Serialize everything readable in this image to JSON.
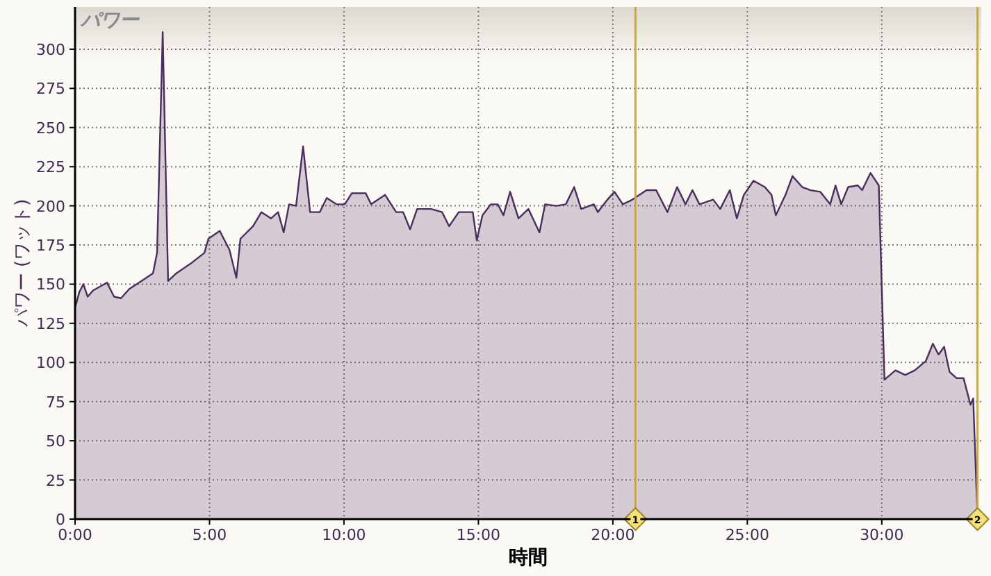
{
  "chart_data": {
    "type": "area",
    "title": "パワー",
    "xlabel": "時間",
    "ylabel": "パワー (ワット)",
    "xlim": [
      0,
      33.7
    ],
    "ylim": [
      0,
      327
    ],
    "xticks": [
      {
        "value": 0,
        "label": "0:00"
      },
      {
        "value": 5,
        "label": "5:00"
      },
      {
        "value": 10,
        "label": "10:00"
      },
      {
        "value": 15,
        "label": "15:00"
      },
      {
        "value": 20,
        "label": "20:00"
      },
      {
        "value": 25,
        "label": "25:00"
      },
      {
        "value": 30,
        "label": "30:00"
      }
    ],
    "yticks": [
      0,
      25,
      50,
      75,
      100,
      125,
      150,
      175,
      200,
      225,
      250,
      275,
      300
    ],
    "grid": true,
    "ref_lines": [
      {
        "axis": "x",
        "value": 20.84,
        "color": "#d4aa20"
      },
      {
        "axis": "x",
        "value": 33.56,
        "color": "#d4aa20"
      }
    ],
    "annotations": [
      {
        "text": "1",
        "x": 20.84,
        "y": 0
      },
      {
        "text": "2",
        "x": 33.56,
        "y": 0
      }
    ],
    "series": [
      {
        "color": "#4b2c5e",
        "x": [
          0,
          0.16,
          0.31,
          0.47,
          0.67,
          1.19,
          1.45,
          1.71,
          2.02,
          2.38,
          2.9,
          3.05,
          3.26,
          3.46,
          3.77,
          4.29,
          4.81,
          4.96,
          5.38,
          5.74,
          6.0,
          6.15,
          6.62,
          6.93,
          7.29,
          7.55,
          7.76,
          7.96,
          8.22,
          8.48,
          8.74,
          9.1,
          9.36,
          9.72,
          10.03,
          10.29,
          10.81,
          11.01,
          11.53,
          11.94,
          12.2,
          12.46,
          12.72,
          13.24,
          13.65,
          13.91,
          14.27,
          14.79,
          14.94,
          15.15,
          15.46,
          15.72,
          15.93,
          16.18,
          16.49,
          16.86,
          17.27,
          17.48,
          17.89,
          18.25,
          18.56,
          18.82,
          19.29,
          19.44,
          19.8,
          20.06,
          20.37,
          20.73,
          21.25,
          21.61,
          22.03,
          22.39,
          22.7,
          22.96,
          23.22,
          23.73,
          23.99,
          24.35,
          24.61,
          24.87,
          25.23,
          25.65,
          25.9,
          26.06,
          26.42,
          26.68,
          27.04,
          27.35,
          27.71,
          28.08,
          28.28,
          28.49,
          28.75,
          29.11,
          29.27,
          29.58,
          29.89,
          30.1,
          30.51,
          30.87,
          31.23,
          31.64,
          31.9,
          32.11,
          32.32,
          32.52,
          32.78,
          33.04,
          33.3,
          33.4,
          33.56
        ],
        "values": [
          135,
          145,
          150,
          142,
          146,
          151,
          142,
          141,
          147,
          151,
          157,
          170,
          311,
          152,
          157,
          163,
          170,
          179,
          184,
          172,
          154,
          179,
          187,
          196,
          192,
          196,
          183,
          201,
          200,
          238,
          196,
          196,
          205,
          201,
          201,
          208,
          208,
          201,
          207,
          196,
          196,
          185,
          198,
          198,
          196,
          187,
          196,
          196,
          178,
          194,
          201,
          201,
          194,
          209,
          192,
          198,
          183,
          201,
          200,
          201,
          212,
          198,
          201,
          196,
          204,
          209,
          201,
          204,
          210,
          210,
          196,
          212,
          201,
          210,
          201,
          204,
          198,
          210,
          192,
          207,
          216,
          212,
          207,
          194,
          207,
          219,
          212,
          210,
          209,
          201,
          213,
          201,
          212,
          213,
          210,
          221,
          213,
          89,
          95,
          92,
          95,
          101,
          112,
          105,
          110,
          94,
          90,
          90,
          73,
          77,
          1
        ]
      }
    ]
  }
}
